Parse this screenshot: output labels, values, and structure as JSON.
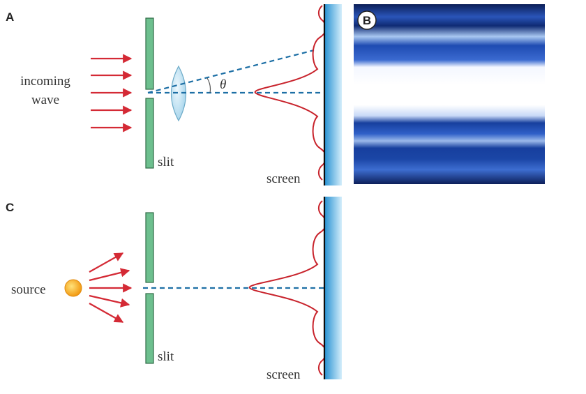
{
  "panels": {
    "a": {
      "label": "A",
      "incoming_label_line1": "incoming",
      "incoming_label_line2": "wave",
      "angle_label": "θ",
      "slit_label": "slit",
      "screen_label": "screen"
    },
    "b": {
      "label": "B",
      "image_description": "single-slit diffraction photograph"
    },
    "c": {
      "label": "C",
      "source_label": "source",
      "slit_label": "slit",
      "screen_label": "screen"
    }
  },
  "colors": {
    "arrow": "#d42a35",
    "slit": "#6dbf8e",
    "slit_edge": "#2f6b46",
    "axis_dash": "#1d6fa5",
    "intensity_curve": "#c8232c",
    "screen_dark": "#1f8dd0",
    "screen_light": "#d4eefb",
    "lens": "#bfe3f2",
    "source": "#f6b21c",
    "pattern_dark": "#0a1f5e",
    "pattern_blue": "#2e5cc2",
    "pattern_white": "#ffffff"
  }
}
